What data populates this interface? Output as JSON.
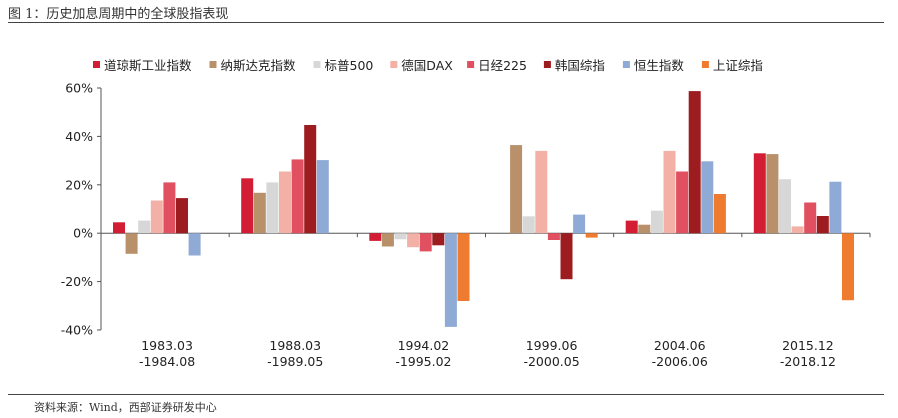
{
  "header": {
    "title": "图 1：历史加息周期中的全球股指表现"
  },
  "footer": {
    "source": "资料来源：Wind，西部证券研发中心"
  },
  "chart_data": {
    "type": "bar",
    "title": "",
    "xlabel": "",
    "ylabel": "",
    "ylim": [
      -40,
      60
    ],
    "yticks": [
      "60%",
      "40%",
      "20%",
      "0%",
      "-20%",
      "-40%"
    ],
    "ytick_values": [
      60,
      40,
      20,
      0,
      -20,
      -40
    ],
    "grid": false,
    "legend": "top",
    "categories": [
      [
        "1983.03",
        "-1984.08"
      ],
      [
        "1988.03",
        "-1989.05"
      ],
      [
        "1994.02",
        "-1995.02"
      ],
      [
        "1999.06",
        "-2000.05"
      ],
      [
        "2004.06",
        "-2006.06"
      ],
      [
        "2015.12",
        "-2018.12"
      ]
    ],
    "series": [
      {
        "name": "道琼斯工业指数",
        "color": "#d31d34",
        "values": [
          4.5,
          22.7,
          -3.2,
          null,
          5.2,
          33.0
        ]
      },
      {
        "name": "纳斯达克指数",
        "color": "#b8906a",
        "values": [
          -8.5,
          16.7,
          -5.5,
          36.4,
          3.5,
          32.7
        ]
      },
      {
        "name": "标普500",
        "color": "#d7d7d7",
        "values": [
          5.2,
          21.0,
          -2.5,
          7.0,
          9.3,
          22.3
        ]
      },
      {
        "name": "德国DAX",
        "color": "#f2b0a6",
        "values": [
          13.5,
          25.5,
          -5.8,
          34.0,
          34.0,
          2.8
        ]
      },
      {
        "name": "日经225",
        "color": "#e05061",
        "values": [
          21.0,
          30.5,
          -7.5,
          -2.8,
          25.5,
          12.7
        ]
      },
      {
        "name": "韩国综指",
        "color": "#9c1c20",
        "values": [
          14.5,
          44.7,
          -5.0,
          -19.0,
          58.7,
          7.1
        ]
      },
      {
        "name": "恒生指数",
        "color": "#8fabd5",
        "values": [
          -9.2,
          30.2,
          -38.7,
          7.7,
          29.7,
          21.3
        ]
      },
      {
        "name": "上证综指",
        "color": "#ee7b30",
        "values": [
          null,
          null,
          -28.0,
          -1.8,
          16.2,
          -27.7
        ]
      }
    ]
  }
}
